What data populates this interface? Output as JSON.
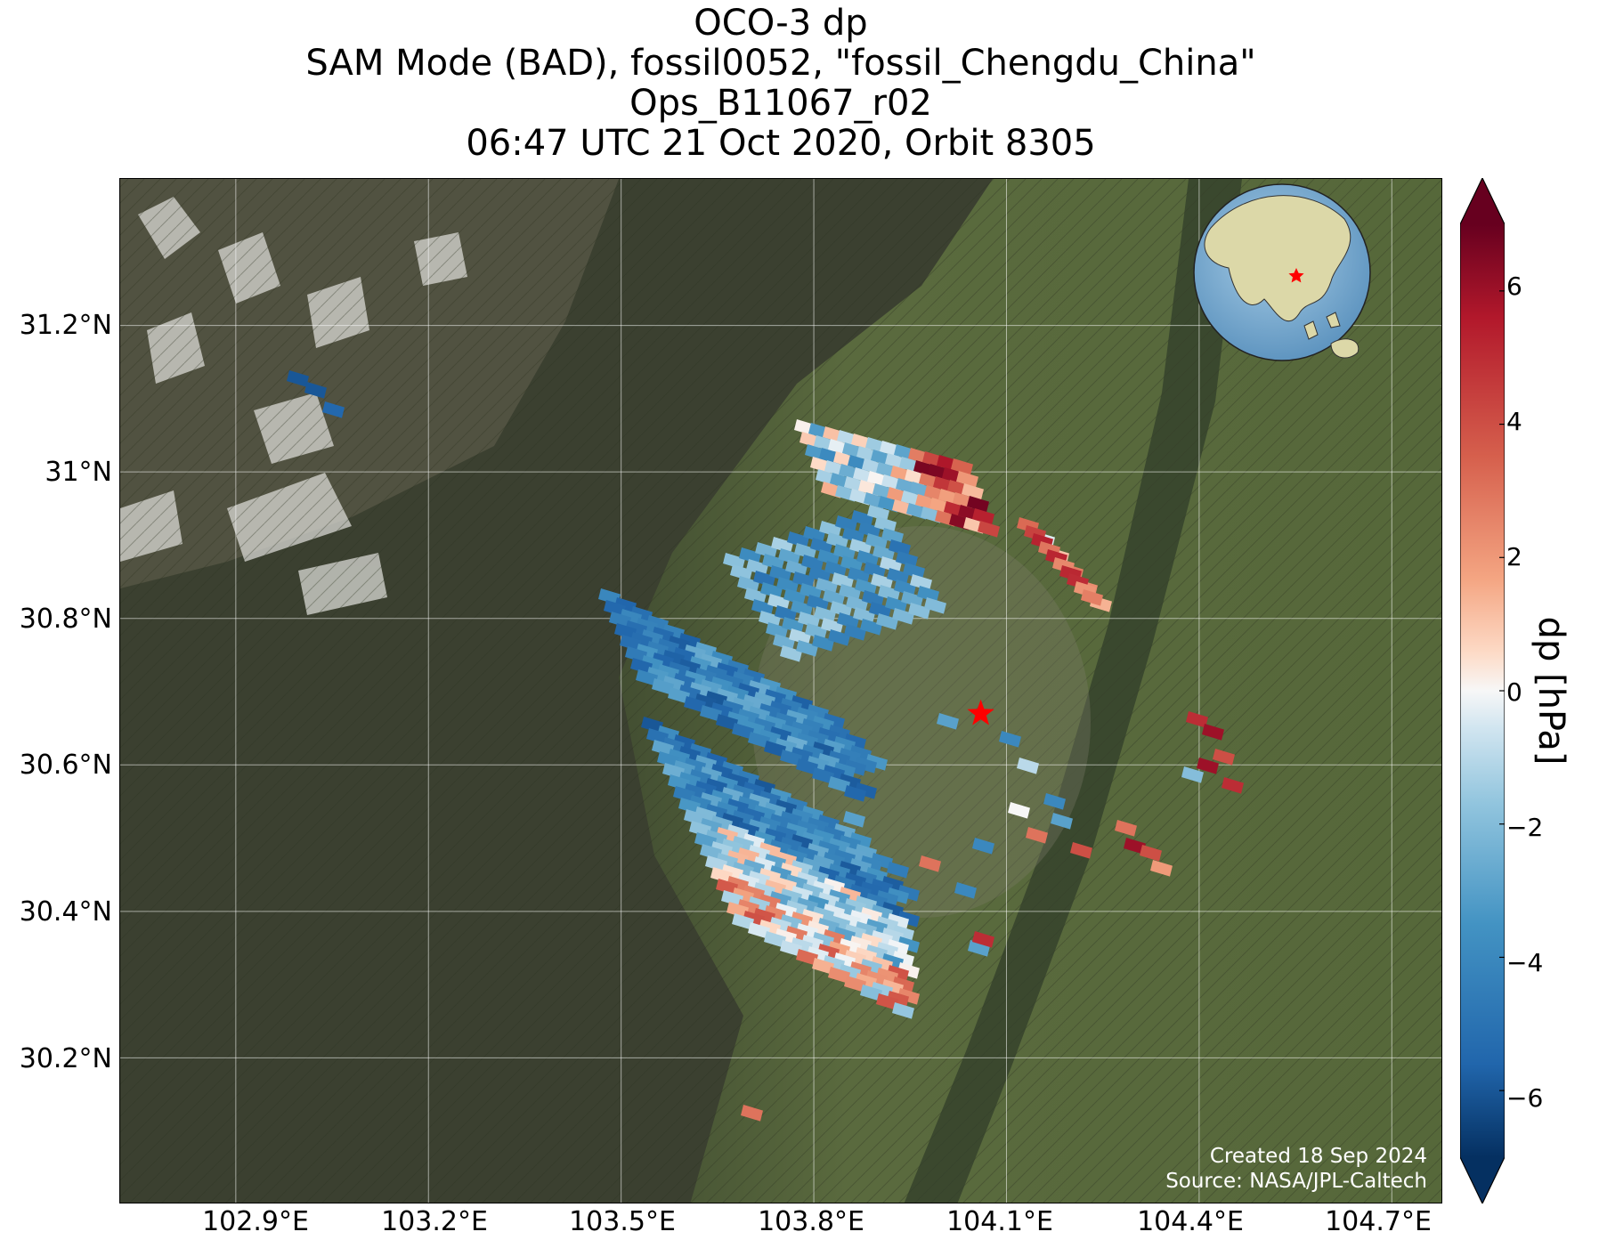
{
  "title": {
    "line1": "OCO-3 dp",
    "line2": "SAM Mode (BAD), fossil0052, \"fossil_Chengdu_China\"",
    "line3": "Ops_B11067_r02",
    "line4": "06:47 UTC 21 Oct 2020, Orbit 8305"
  },
  "map": {
    "lon_range": [
      102.72,
      104.78
    ],
    "lat_range": [
      30.0,
      31.4
    ],
    "x_ticks": [
      "102.9°E",
      "103.2°E",
      "103.5°E",
      "103.8°E",
      "104.1°E",
      "104.4°E",
      "104.7°E"
    ],
    "x_tick_values": [
      102.9,
      103.2,
      103.5,
      103.8,
      104.1,
      104.4,
      104.7
    ],
    "y_ticks": [
      "31.2°N",
      "31°N",
      "30.8°N",
      "30.6°N",
      "30.4°N",
      "30.2°N"
    ],
    "y_tick_values": [
      31.2,
      31.0,
      30.8,
      30.6,
      30.4,
      30.2
    ],
    "grid": true,
    "target_marker": {
      "lon": 104.06,
      "lat": 30.67,
      "color": "#ff0000",
      "shape": "star"
    },
    "credit_line1": "Created 18 Sep 2024",
    "credit_line2": "Source: NASA/JPL-Caltech",
    "inset_globe": {
      "description_icon": "globe-icon",
      "ocean_color": "#7fb3d8",
      "land_color": "#dcd8a8"
    }
  },
  "colorbar": {
    "label": "dp [hPa]",
    "ticks": [
      "6",
      "4",
      "2",
      "0",
      "−2",
      "−4",
      "−6"
    ],
    "tick_values": [
      6,
      4,
      2,
      0,
      -2,
      -4,
      -6
    ],
    "range": [
      -7,
      7
    ],
    "colormap": "RdBu_r",
    "extend": "both"
  }
}
